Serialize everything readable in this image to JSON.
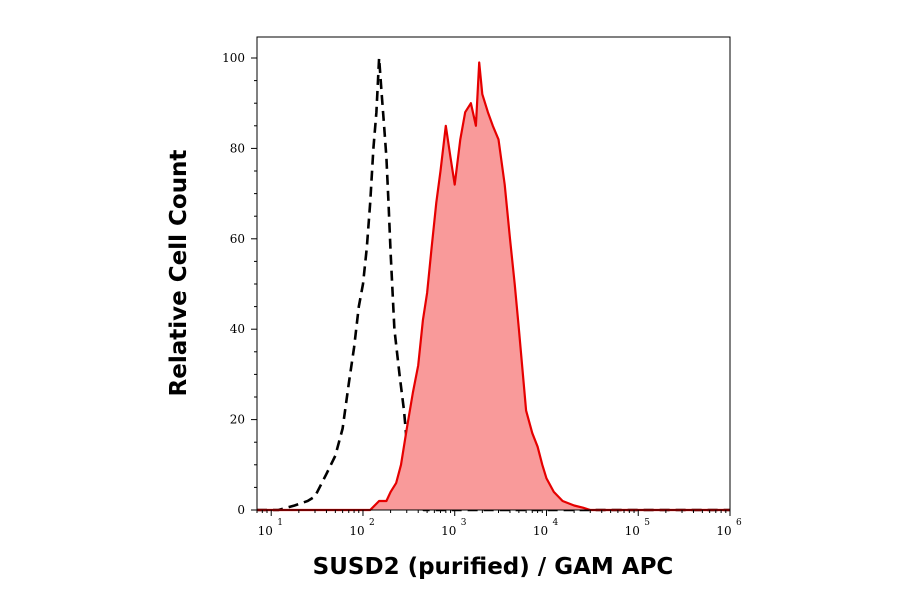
{
  "chart_data": {
    "type": "area",
    "xlabel": "SUSD2 (purified) / GAM APC",
    "ylabel": "Relative Cell Count",
    "xscale": "log",
    "xlim": [
      7,
      1000000
    ],
    "ylim": [
      0,
      100
    ],
    "x_ticks": [
      {
        "base": "10",
        "exp": "1"
      },
      {
        "base": "10",
        "exp": "2"
      },
      {
        "base": "10",
        "exp": "3"
      },
      {
        "base": "10",
        "exp": "4"
      },
      {
        "base": "10",
        "exp": "5"
      },
      {
        "base": "10",
        "exp": "6"
      }
    ],
    "x_tick_values": [
      10,
      100,
      1000,
      10000,
      100000,
      1000000
    ],
    "y_ticks": [
      "0",
      "20",
      "40",
      "60",
      "80",
      "100"
    ],
    "y_tick_values": [
      0,
      20,
      40,
      60,
      80,
      100
    ],
    "grid": false,
    "colors": {
      "stained_fill": "#f99a9a",
      "stained_line": "#e60000",
      "control_line": "#000000"
    },
    "series": [
      {
        "style": "dashed-line",
        "x": [
          7,
          12,
          18,
          25,
          30,
          40,
          50,
          60,
          70,
          80,
          90,
          100,
          110,
          120,
          130,
          140,
          150,
          160,
          170,
          180,
          190,
          200,
          220,
          250,
          280,
          300,
          330,
          360,
          400,
          430,
          460,
          500,
          1000000
        ],
        "y": [
          0,
          0,
          1,
          2,
          3,
          8,
          12,
          18,
          28,
          36,
          45,
          50,
          58,
          68,
          80,
          88,
          100,
          92,
          85,
          78,
          68,
          57,
          40,
          30,
          22,
          15,
          8,
          3,
          1,
          0.5,
          0,
          0,
          0
        ]
      },
      {
        "style": "filled-area",
        "x": [
          7,
          120,
          150,
          180,
          200,
          230,
          260,
          300,
          350,
          400,
          450,
          500,
          560,
          630,
          700,
          800,
          900,
          1000,
          1150,
          1300,
          1500,
          1700,
          1850,
          2000,
          2300,
          2600,
          3000,
          3500,
          4000,
          4500,
          5000,
          6000,
          7000,
          8000,
          9000,
          10000,
          12000,
          15000,
          20000,
          25000,
          30000,
          40000,
          1000000
        ],
        "y": [
          0,
          0,
          2,
          2,
          4,
          6,
          10,
          18,
          26,
          32,
          42,
          48,
          58,
          68,
          75,
          85,
          78,
          72,
          82,
          88,
          90,
          85,
          99,
          92,
          88,
          85,
          82,
          72,
          60,
          50,
          40,
          22,
          17,
          14,
          10,
          7,
          4,
          2,
          1,
          0.5,
          0,
          0,
          0
        ]
      }
    ]
  }
}
